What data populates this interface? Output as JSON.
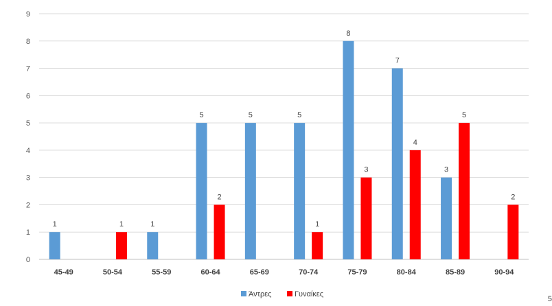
{
  "chart_data": {
    "type": "bar",
    "categories": [
      "45-49",
      "50-54",
      "55-59",
      "60-64",
      "65-69",
      "70-74",
      "75-79",
      "80-84",
      "85-89",
      "90-94"
    ],
    "series": [
      {
        "name": "Άντρες",
        "color": "#5b9bd5",
        "values": [
          1,
          0,
          1,
          5,
          5,
          5,
          8,
          7,
          3,
          0
        ]
      },
      {
        "name": "Γυναίκες",
        "color": "#ff0000",
        "values": [
          0,
          1,
          0,
          2,
          0,
          1,
          3,
          4,
          5,
          2
        ]
      }
    ],
    "ylim": [
      0,
      9
    ],
    "yticks": [
      0,
      1,
      2,
      3,
      4,
      5,
      6,
      7,
      8,
      9
    ],
    "grid": true,
    "legend": "bottom",
    "data_labels": true
  },
  "page_number": "5"
}
